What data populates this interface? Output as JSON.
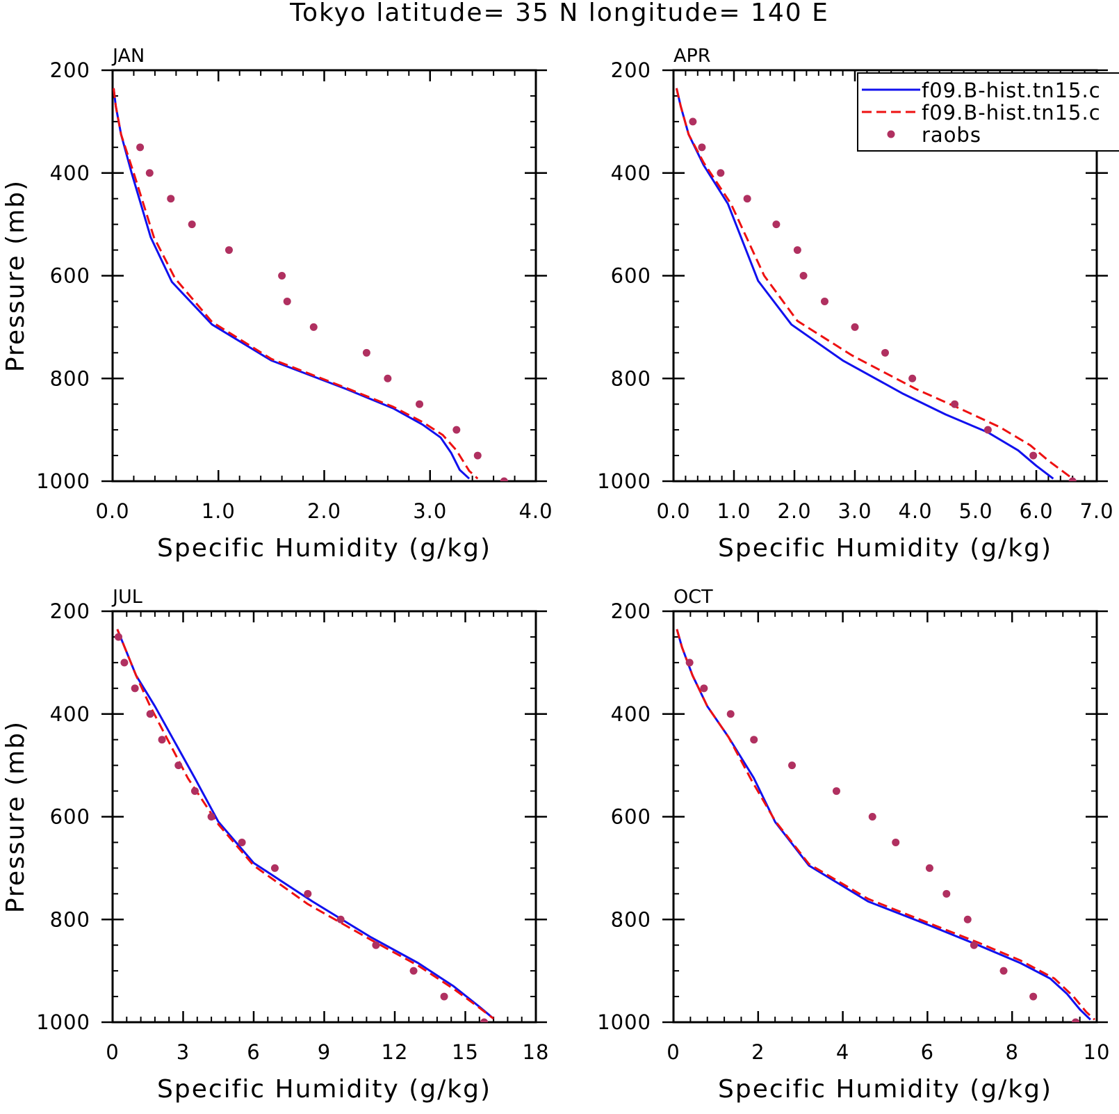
{
  "title": "Tokyo  latitude= 35 N longitude= 140 E",
  "colors": {
    "model1": "#1111ee",
    "model2": "#ee1111",
    "obs": "#b03060",
    "axis": "#000000"
  },
  "chart_data": [
    {
      "type": "line",
      "panel_label": "JAN",
      "xlabel": "Specific Humidity (g/kg)",
      "ylabel": "Pressure (mb)",
      "xlim": [
        0,
        4
      ],
      "ylim": [
        200,
        1000
      ],
      "y_inverted": true,
      "xticks": [
        0,
        1,
        2,
        3,
        4
      ],
      "xtick_labels": [
        "0.0",
        "1.0",
        "2.0",
        "3.0",
        "4.0"
      ],
      "yticks": [
        200,
        400,
        600,
        800,
        1000
      ],
      "ytick_labels": [
        "200",
        "400",
        "600",
        "800",
        "1000"
      ],
      "series": [
        {
          "style": "solid",
          "color": "#1111ee",
          "points": [
            [
              0.01,
              235
            ],
            [
              0.03,
              270
            ],
            [
              0.08,
              325
            ],
            [
              0.18,
              400
            ],
            [
              0.36,
              525
            ],
            [
              0.56,
              612
            ],
            [
              0.94,
              695
            ],
            [
              1.5,
              765
            ],
            [
              2.2,
              820
            ],
            [
              2.65,
              858
            ],
            [
              2.93,
              890
            ],
            [
              3.1,
              915
            ],
            [
              3.2,
              945
            ],
            [
              3.28,
              978
            ],
            [
              3.37,
              995
            ]
          ]
        },
        {
          "style": "dashed",
          "color": "#ee1111",
          "points": [
            [
              0.01,
              235
            ],
            [
              0.03,
              270
            ],
            [
              0.08,
              325
            ],
            [
              0.2,
              400
            ],
            [
              0.39,
              525
            ],
            [
              0.59,
              605
            ],
            [
              0.94,
              690
            ],
            [
              1.5,
              762
            ],
            [
              2.2,
              818
            ],
            [
              2.65,
              855
            ],
            [
              2.93,
              885
            ],
            [
              3.12,
              910
            ],
            [
              3.25,
              940
            ],
            [
              3.37,
              980
            ],
            [
              3.45,
              995
            ]
          ]
        },
        {
          "style": "points",
          "name": "raobs",
          "color": "#b03060",
          "points": [
            [
              0.26,
              350
            ],
            [
              0.35,
              400
            ],
            [
              0.55,
              450
            ],
            [
              0.75,
              500
            ],
            [
              1.1,
              550
            ],
            [
              1.6,
              600
            ],
            [
              1.65,
              650
            ],
            [
              1.9,
              700
            ],
            [
              2.4,
              750
            ],
            [
              2.6,
              800
            ],
            [
              2.9,
              850
            ],
            [
              3.25,
              900
            ],
            [
              3.45,
              950
            ],
            [
              3.7,
              1000
            ]
          ]
        }
      ]
    },
    {
      "type": "line",
      "panel_label": "APR",
      "xlabel": "Specific Humidity (g/kg)",
      "ylabel": "",
      "xlim": [
        0,
        7
      ],
      "ylim": [
        200,
        1000
      ],
      "y_inverted": true,
      "xticks": [
        0,
        1,
        2,
        3,
        4,
        5,
        6,
        7
      ],
      "xtick_labels": [
        "0.0",
        "1.0",
        "2.0",
        "3.0",
        "4.0",
        "5.0",
        "6.0",
        "7.0"
      ],
      "yticks": [
        200,
        400,
        600,
        800,
        1000
      ],
      "ytick_labels": [
        "200",
        "400",
        "600",
        "800",
        "1000"
      ],
      "legend": {
        "position": "top-right",
        "entries": [
          {
            "label": "f09.B-hist.tn15.c",
            "style": "solid"
          },
          {
            "label": "f09.B-hist.tn15.c",
            "style": "dashed"
          },
          {
            "label": "raobs",
            "style": "points"
          }
        ]
      },
      "series": [
        {
          "style": "solid",
          "color": "#1111ee",
          "points": [
            [
              0.05,
              235
            ],
            [
              0.12,
              270
            ],
            [
              0.25,
              325
            ],
            [
              0.5,
              385
            ],
            [
              0.9,
              460
            ],
            [
              1.4,
              610
            ],
            [
              1.95,
              695
            ],
            [
              2.8,
              765
            ],
            [
              3.8,
              830
            ],
            [
              4.5,
              870
            ],
            [
              5.2,
              905
            ],
            [
              5.7,
              940
            ],
            [
              6.0,
              970
            ],
            [
              6.28,
              995
            ]
          ]
        },
        {
          "style": "dashed",
          "color": "#ee1111",
          "points": [
            [
              0.05,
              235
            ],
            [
              0.12,
              270
            ],
            [
              0.25,
              325
            ],
            [
              0.5,
              380
            ],
            [
              0.95,
              460
            ],
            [
              1.5,
              600
            ],
            [
              2.05,
              688
            ],
            [
              2.95,
              755
            ],
            [
              4.0,
              820
            ],
            [
              4.8,
              862
            ],
            [
              5.4,
              895
            ],
            [
              5.9,
              930
            ],
            [
              6.2,
              960
            ],
            [
              6.6,
              995
            ]
          ]
        },
        {
          "style": "points",
          "name": "raobs",
          "color": "#b03060",
          "points": [
            [
              0.32,
              300
            ],
            [
              0.47,
              350
            ],
            [
              0.78,
              400
            ],
            [
              1.22,
              450
            ],
            [
              1.7,
              500
            ],
            [
              2.05,
              550
            ],
            [
              2.15,
              600
            ],
            [
              2.5,
              650
            ],
            [
              3.0,
              700
            ],
            [
              3.5,
              750
            ],
            [
              3.95,
              800
            ],
            [
              4.65,
              850
            ],
            [
              5.2,
              900
            ],
            [
              5.95,
              950
            ],
            [
              6.6,
              1000
            ]
          ]
        }
      ]
    },
    {
      "type": "line",
      "panel_label": "JUL",
      "xlabel": "Specific Humidity (g/kg)",
      "ylabel": "Pressure (mb)",
      "xlim": [
        0,
        18
      ],
      "ylim": [
        200,
        1000
      ],
      "y_inverted": true,
      "xticks": [
        0,
        3,
        6,
        9,
        12,
        15,
        18
      ],
      "xtick_labels": [
        "0",
        "3",
        "6",
        "9",
        "12",
        "15",
        "18"
      ],
      "yticks": [
        200,
        400,
        600,
        800,
        1000
      ],
      "ytick_labels": [
        "200",
        "400",
        "600",
        "800",
        "1000"
      ],
      "series": [
        {
          "style": "solid",
          "color": "#1111ee",
          "points": [
            [
              0.2,
              235
            ],
            [
              0.6,
              280
            ],
            [
              1.0,
              325
            ],
            [
              1.8,
              385
            ],
            [
              3.5,
              525
            ],
            [
              4.5,
              610
            ],
            [
              6.0,
              690
            ],
            [
              8.5,
              765
            ],
            [
              11.0,
              835
            ],
            [
              13.0,
              885
            ],
            [
              14.5,
              930
            ],
            [
              15.6,
              970
            ],
            [
              16.2,
              993
            ]
          ]
        },
        {
          "style": "dashed",
          "color": "#ee1111",
          "points": [
            [
              0.2,
              235
            ],
            [
              0.6,
              280
            ],
            [
              1.0,
              325
            ],
            [
              1.6,
              385
            ],
            [
              3.2,
              525
            ],
            [
              4.5,
              615
            ],
            [
              6.0,
              695
            ],
            [
              8.3,
              770
            ],
            [
              11.0,
              840
            ],
            [
              13.0,
              890
            ],
            [
              14.5,
              935
            ],
            [
              15.6,
              972
            ],
            [
              16.2,
              993
            ]
          ]
        },
        {
          "style": "points",
          "name": "raobs",
          "color": "#b03060",
          "points": [
            [
              0.25,
              250
            ],
            [
              0.5,
              300
            ],
            [
              0.95,
              350
            ],
            [
              1.6,
              400
            ],
            [
              2.1,
              450
            ],
            [
              2.8,
              500
            ],
            [
              3.5,
              550
            ],
            [
              4.2,
              600
            ],
            [
              5.5,
              650
            ],
            [
              6.9,
              700
            ],
            [
              8.3,
              750
            ],
            [
              9.7,
              800
            ],
            [
              11.2,
              850
            ],
            [
              12.8,
              900
            ],
            [
              14.1,
              950
            ],
            [
              15.8,
              1000
            ]
          ]
        }
      ]
    },
    {
      "type": "line",
      "panel_label": "OCT",
      "xlabel": "Specific Humidity (g/kg)",
      "ylabel": "",
      "xlim": [
        0,
        10
      ],
      "ylim": [
        200,
        1000
      ],
      "y_inverted": true,
      "xticks": [
        0,
        2,
        4,
        6,
        8,
        10
      ],
      "xtick_labels": [
        "0",
        "2",
        "4",
        "6",
        "8",
        "10"
      ],
      "yticks": [
        200,
        400,
        600,
        800,
        1000
      ],
      "ytick_labels": [
        "200",
        "400",
        "600",
        "800",
        "1000"
      ],
      "series": [
        {
          "style": "solid",
          "color": "#1111ee",
          "points": [
            [
              0.08,
              235
            ],
            [
              0.2,
              270
            ],
            [
              0.45,
              325
            ],
            [
              0.8,
              385
            ],
            [
              1.3,
              445
            ],
            [
              1.9,
              525
            ],
            [
              2.4,
              610
            ],
            [
              3.2,
              695
            ],
            [
              4.6,
              765
            ],
            [
              6.0,
              810
            ],
            [
              7.2,
              850
            ],
            [
              8.2,
              885
            ],
            [
              8.9,
              915
            ],
            [
              9.3,
              945
            ],
            [
              9.6,
              975
            ],
            [
              9.85,
              995
            ]
          ]
        },
        {
          "style": "dashed",
          "color": "#ee1111",
          "points": [
            [
              0.08,
              235
            ],
            [
              0.2,
              270
            ],
            [
              0.45,
              325
            ],
            [
              0.8,
              385
            ],
            [
              1.3,
              445
            ],
            [
              1.85,
              530
            ],
            [
              2.4,
              608
            ],
            [
              3.2,
              692
            ],
            [
              4.6,
              760
            ],
            [
              6.0,
              806
            ],
            [
              7.2,
              845
            ],
            [
              8.2,
              880
            ],
            [
              9.0,
              915
            ],
            [
              9.45,
              950
            ],
            [
              9.75,
              980
            ],
            [
              9.95,
              995
            ]
          ]
        },
        {
          "style": "points",
          "name": "raobs",
          "color": "#b03060",
          "points": [
            [
              0.38,
              300
            ],
            [
              0.72,
              350
            ],
            [
              1.35,
              400
            ],
            [
              1.9,
              450
            ],
            [
              2.8,
              500
            ],
            [
              3.85,
              550
            ],
            [
              4.7,
              600
            ],
            [
              5.25,
              650
            ],
            [
              6.05,
              700
            ],
            [
              6.45,
              750
            ],
            [
              6.95,
              800
            ],
            [
              7.1,
              850
            ],
            [
              7.8,
              900
            ],
            [
              8.5,
              950
            ],
            [
              9.5,
              1000
            ]
          ]
        }
      ]
    }
  ]
}
